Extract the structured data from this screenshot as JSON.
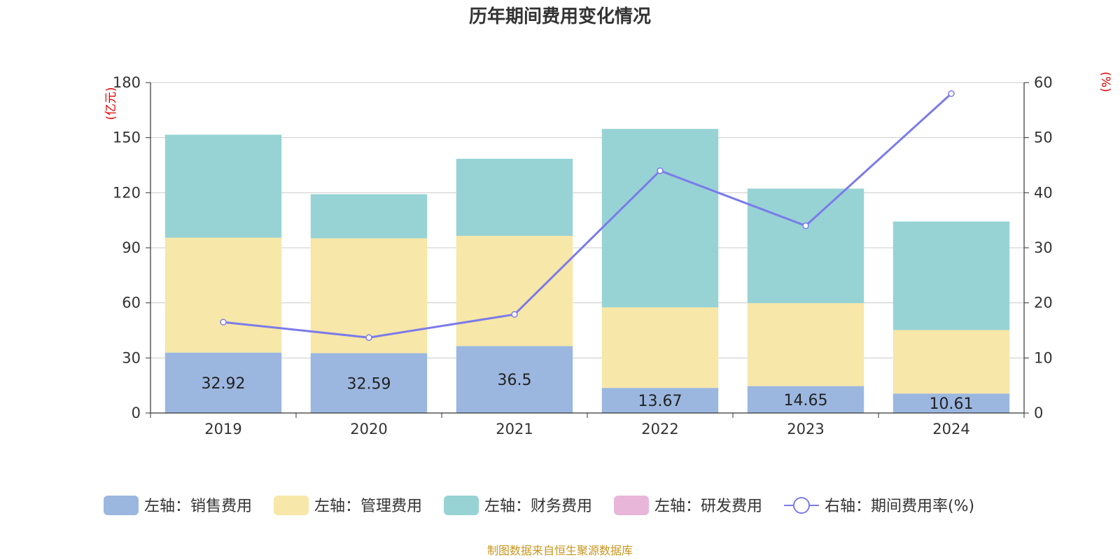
{
  "chart_data": {
    "type": "bar",
    "stacked": true,
    "title": "历年期间费用变化情况",
    "categories": [
      "2019",
      "2020",
      "2021",
      "2022",
      "2023",
      "2024"
    ],
    "y_left": {
      "unit": "(亿元)",
      "ylim": [
        0,
        180
      ],
      "ticks": [
        0,
        30,
        60,
        90,
        120,
        150,
        180
      ]
    },
    "y_right": {
      "unit": "(%)",
      "ylim": [
        0,
        60
      ],
      "ticks": [
        0,
        10,
        20,
        30,
        40,
        50,
        60
      ]
    },
    "grid": true,
    "legend_position": "bottom",
    "series": [
      {
        "name": "左轴：销售费用",
        "axis": "left",
        "type": "bar",
        "color": "#9bb7e0",
        "values": [
          32.92,
          32.59,
          36.5,
          13.67,
          14.65,
          10.61
        ],
        "labels": [
          "32.92",
          "32.59",
          "36.5",
          "13.67",
          "14.65",
          "10.61"
        ]
      },
      {
        "name": "左轴：管理费用",
        "axis": "left",
        "type": "bar",
        "color": "#f7e7a8",
        "values": [
          62.6,
          62.6,
          60.0,
          43.9,
          45.2,
          34.6
        ]
      },
      {
        "name": "左轴：财务费用",
        "axis": "left",
        "type": "bar",
        "color": "#97d3d4",
        "values": [
          56.1,
          24.0,
          42.0,
          97.2,
          62.4,
          59.1
        ]
      },
      {
        "name": "左轴：研发费用",
        "axis": "left",
        "type": "bar",
        "color": "#e8b6d8",
        "values": [
          0,
          0,
          0,
          0,
          0,
          0
        ]
      },
      {
        "name": "右轴：期间费用率(%)",
        "axis": "right",
        "type": "line",
        "color": "#7b7bea",
        "values": [
          16.5,
          13.7,
          17.9,
          44.0,
          34.0,
          58.0
        ]
      }
    ],
    "source": "制图数据来自恒生聚源数据库"
  }
}
